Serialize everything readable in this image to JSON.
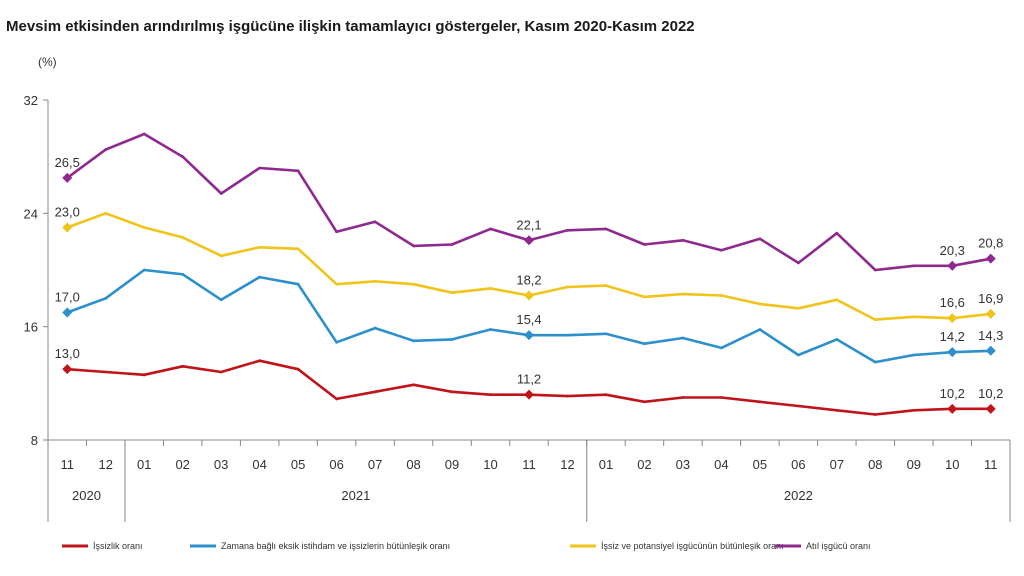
{
  "chart_data": {
    "type": "line",
    "title": "Mevsim etkisinden arındırılmış işgücüne ilişkin tamamlayıcı göstergeler, Kasım 2020-Kasım 2022",
    "ylabel": "(%)",
    "ylim": [
      8,
      32
    ],
    "yticks": [
      "8",
      "16",
      "24",
      "32"
    ],
    "x": [
      "11",
      "12",
      "01",
      "02",
      "03",
      "04",
      "05",
      "06",
      "07",
      "08",
      "09",
      "10",
      "11",
      "12",
      "01",
      "02",
      "03",
      "04",
      "05",
      "06",
      "07",
      "08",
      "09",
      "10",
      "11"
    ],
    "years": [
      {
        "label": "2020",
        "start": 0,
        "end": 1
      },
      {
        "label": "2021",
        "start": 2,
        "end": 13
      },
      {
        "label": "2022",
        "start": 14,
        "end": 24
      }
    ],
    "grid": false,
    "legend_position": "bottom",
    "series": [
      {
        "name": "İşsizlik oranı",
        "color": "#c0141b",
        "values": [
          13.0,
          12.8,
          12.6,
          13.2,
          12.8,
          13.6,
          13.0,
          10.9,
          11.4,
          11.9,
          11.4,
          11.2,
          11.2,
          11.1,
          11.2,
          10.7,
          11.0,
          11.0,
          10.7,
          10.4,
          10.1,
          9.8,
          10.1,
          10.2,
          10.2
        ],
        "markers": [
          0,
          12,
          23,
          24
        ],
        "labels": [
          "13,0",
          "11,2",
          "10,2",
          "10,2"
        ]
      },
      {
        "name": "Zamana bağlı eksik istihdam ve işsizlerin bütünleşik oranı",
        "color": "#2d8fcc",
        "values": [
          17.0,
          18.0,
          20.0,
          19.7,
          17.9,
          19.5,
          19.0,
          14.9,
          15.9,
          15.0,
          15.1,
          15.8,
          15.4,
          15.4,
          15.5,
          14.8,
          15.2,
          14.5,
          15.8,
          14.0,
          15.1,
          13.5,
          14.0,
          14.2,
          14.3
        ],
        "markers": [
          0,
          12,
          23,
          24
        ],
        "labels": [
          "17,0",
          "15,4",
          "14,2",
          "14,3"
        ]
      },
      {
        "name": "İşsiz ve potansiyel işgücünün bütünleşik oranı",
        "color": "#f0c419",
        "values": [
          23.0,
          24.0,
          23.0,
          22.3,
          21.0,
          21.6,
          21.5,
          19.0,
          19.2,
          19.0,
          18.4,
          18.7,
          18.2,
          18.8,
          18.9,
          18.1,
          18.3,
          18.2,
          17.6,
          17.3,
          17.9,
          16.5,
          16.7,
          16.6,
          16.9
        ],
        "markers": [
          0,
          12,
          23,
          24
        ],
        "labels": [
          "23,0",
          "18,2",
          "16,6",
          "16,9"
        ]
      },
      {
        "name": "Atıl işgücü oranı",
        "color": "#8e2a8f",
        "values": [
          26.5,
          28.5,
          29.6,
          28.0,
          25.4,
          27.2,
          27.0,
          22.7,
          23.4,
          21.7,
          21.8,
          22.9,
          22.1,
          22.8,
          22.9,
          21.8,
          22.1,
          21.4,
          22.2,
          20.5,
          22.6,
          20.0,
          20.3,
          20.3,
          20.8
        ],
        "markers": [
          0,
          12,
          23,
          24
        ],
        "labels": [
          "26,5",
          "22,1",
          "20,3",
          "20,8"
        ]
      }
    ]
  }
}
